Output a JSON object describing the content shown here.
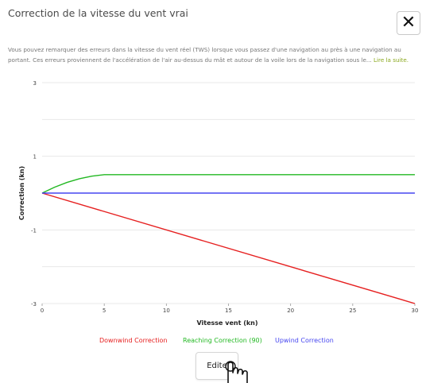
{
  "dialog": {
    "title": "Correction de la vitesse du vent vrai",
    "close_glyph": "✕",
    "description": "Vous pouvez remarquer des erreurs dans la vitesse du vent réel (TWS) lorsque vous passez d'une navigation au près à une navigation au portant. Ces erreurs proviennent de l'accélération de l'air au-dessus du mât et autour de la voile lors de la navigation sous le... ",
    "read_more": "Lire la suite.",
    "edit_label": "Edite"
  },
  "icons": {
    "close": "close-icon",
    "cursor": "hand-pointer-icon"
  },
  "colors": {
    "accent": "#8aa81e",
    "downwind": "#e62020",
    "reaching": "#22b822",
    "upwind": "#4747f0"
  },
  "chart_data": {
    "type": "line",
    "xlabel": "Vitesse vent (kn)",
    "ylabel": "Correction (kn)",
    "xlim": [
      0,
      30
    ],
    "ylim": [
      -3,
      3
    ],
    "x_ticks": [
      "0",
      "5",
      "10",
      "15",
      "20",
      "25",
      "30"
    ],
    "y_ticks": [
      "3",
      "1",
      "-1",
      "-3"
    ],
    "grid": true,
    "legend_position": "bottom",
    "series": [
      {
        "name": "Downwind Correction",
        "color": "#e62020",
        "x": [
          0,
          30
        ],
        "y": [
          0,
          -3
        ]
      },
      {
        "name": "Reaching Correction (90)",
        "color": "#22b822",
        "x": [
          0,
          1,
          2,
          3,
          4,
          5,
          30
        ],
        "y": [
          0,
          0.16,
          0.29,
          0.39,
          0.46,
          0.5,
          0.5
        ]
      },
      {
        "name": "Upwind Correction",
        "color": "#4747f0",
        "x": [
          0,
          30
        ],
        "y": [
          0,
          0
        ]
      }
    ]
  }
}
